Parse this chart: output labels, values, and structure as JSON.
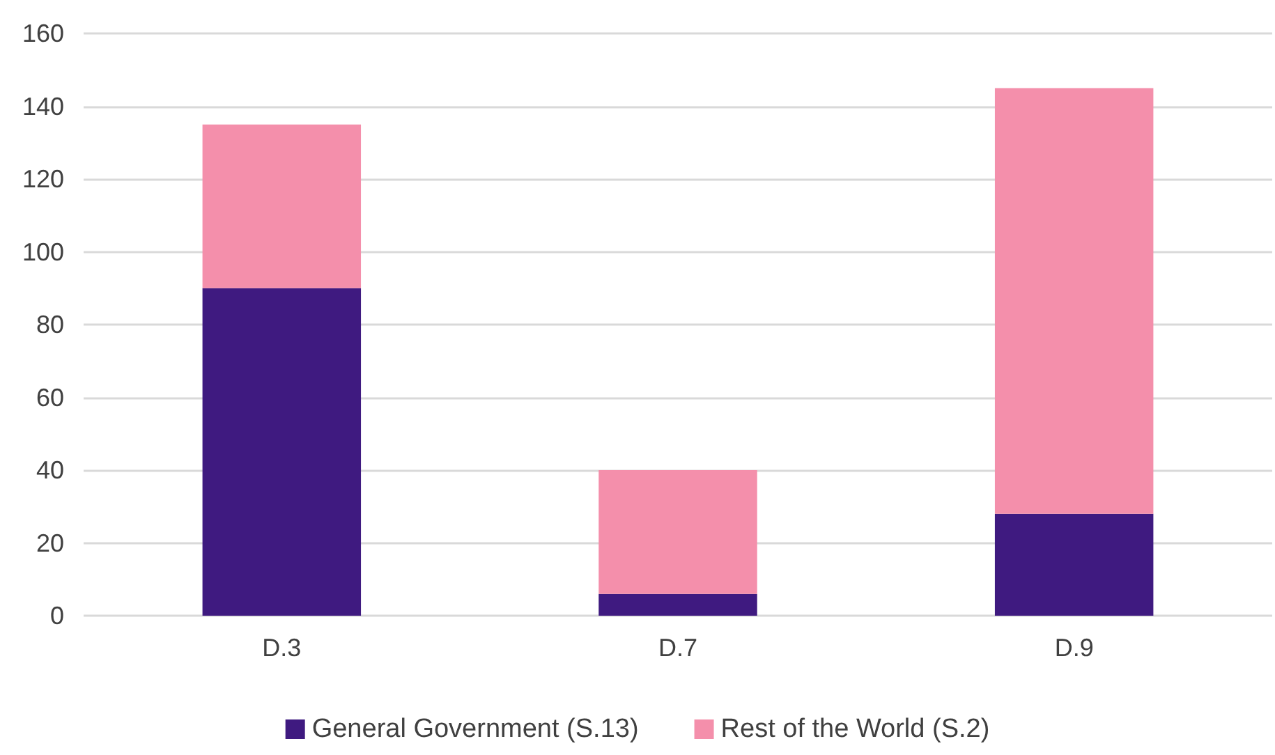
{
  "chart_data": {
    "type": "bar",
    "stacked": true,
    "categories": [
      "D.3",
      "D.7",
      "D.9"
    ],
    "series": [
      {
        "name": "General Government (S.13)",
        "color": "#3f1a80",
        "values": [
          90,
          6,
          28
        ]
      },
      {
        "name": "Rest of the World (S.2)",
        "color": "#f48fab",
        "values": [
          45,
          34,
          117
        ]
      }
    ],
    "ylim": [
      0,
      160
    ],
    "yticks": [
      0,
      20,
      40,
      60,
      80,
      100,
      120,
      140,
      160
    ],
    "grid": "y",
    "legend": "bottom"
  }
}
